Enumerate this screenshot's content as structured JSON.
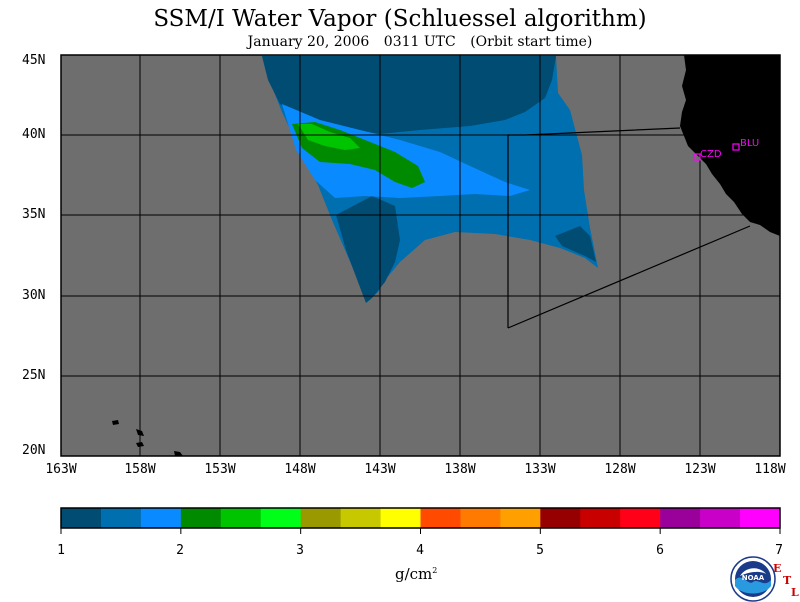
{
  "title": "SSM/I Water Vapor (Schluessel algorithm)",
  "subtitle": {
    "date": "January 20, 2006",
    "time": "0311 UTC",
    "note": "(Orbit start time)"
  },
  "map": {
    "lat_labels": [
      "45N",
      "40N",
      "35N",
      "30N",
      "25N",
      "20N"
    ],
    "lon_labels": [
      "163W",
      "158W",
      "153W",
      "148W",
      "143W",
      "138W",
      "133W",
      "128W",
      "123W",
      "118W"
    ],
    "lat_range": [
      20,
      45
    ],
    "lon_range": [
      -163,
      -118
    ],
    "stations": [
      "CZD",
      "BLU"
    ],
    "colors": {
      "ocean_nodata": "#6e6e6e",
      "land": "#000000",
      "station": "#ff00ff"
    }
  },
  "colorbar": {
    "unit_base": "g/cm",
    "unit_exp": "2",
    "ticks": [
      "1",
      "2",
      "3",
      "4",
      "5",
      "6",
      "7"
    ],
    "colors": [
      "#004c73",
      "#006fb0",
      "#0a8aff",
      "#008a00",
      "#00c400",
      "#00ff18",
      "#9a9a00",
      "#c8c800",
      "#ffff00",
      "#ff4a00",
      "#ff7a00",
      "#ffa000",
      "#960000",
      "#c80000",
      "#ff0018",
      "#9a009a",
      "#c800c8",
      "#ff00ff"
    ]
  },
  "logo": {
    "text": "NOAA",
    "etl_letters": [
      "E",
      "T",
      "L"
    ]
  }
}
